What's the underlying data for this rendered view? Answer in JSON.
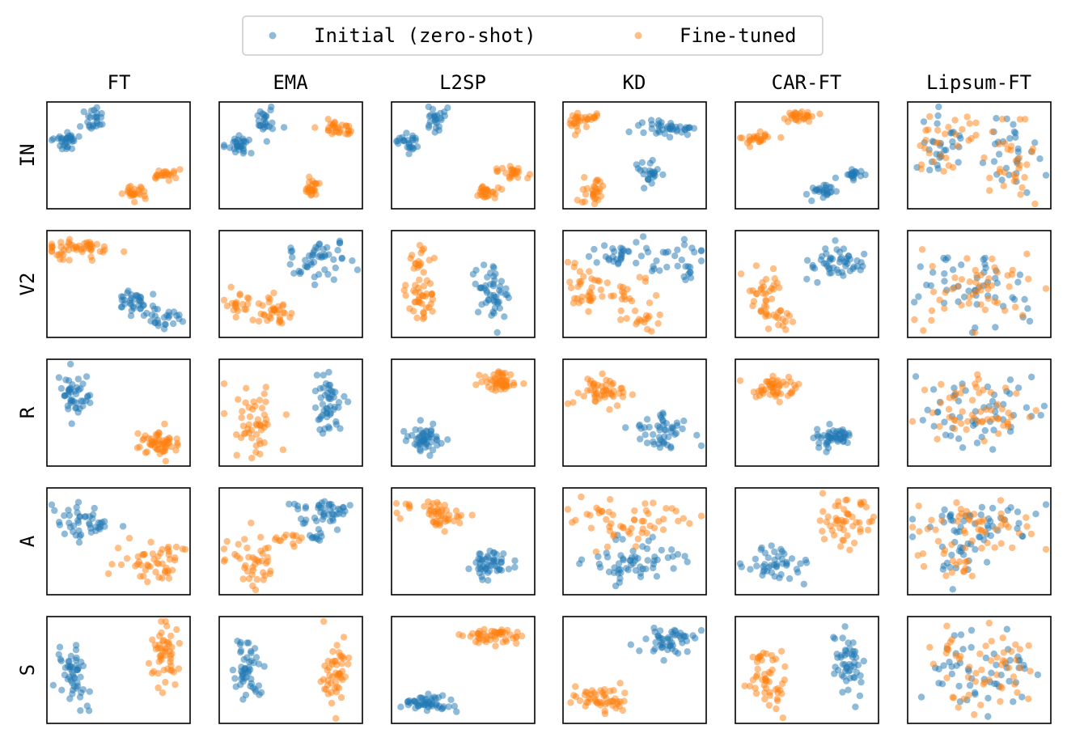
{
  "chart_data": {
    "type": "scatter",
    "legend": {
      "placement": "top-center",
      "entries": [
        {
          "label": "Initial (zero-shot)",
          "color": "#1f77b4"
        },
        {
          "label": "Fine-tuned",
          "color": "#ff7f0e"
        }
      ]
    },
    "columns": [
      "FT",
      "EMA",
      "L2SP",
      "KD",
      "CAR-FT",
      "Lipsum-FT"
    ],
    "rows": [
      "IN",
      "V2",
      "R",
      "A",
      "S"
    ],
    "point_alpha": 0.5,
    "panels": [
      {
        "row": "IN",
        "col": "FT",
        "initial": [
          {
            "cx": 0.1,
            "cy": 0.36,
            "sx": 0.05,
            "sy": 0.05,
            "n": 30
          },
          {
            "cx": 0.3,
            "cy": 0.15,
            "sx": 0.04,
            "sy": 0.08,
            "n": 25
          }
        ],
        "finetuned": [
          {
            "cx": 0.62,
            "cy": 0.88,
            "sx": 0.04,
            "sy": 0.04,
            "n": 25
          },
          {
            "cx": 0.85,
            "cy": 0.7,
            "sx": 0.06,
            "sy": 0.03,
            "n": 22
          }
        ]
      },
      {
        "row": "IN",
        "col": "EMA",
        "initial": [
          {
            "cx": 0.1,
            "cy": 0.4,
            "sx": 0.05,
            "sy": 0.05,
            "n": 30
          },
          {
            "cx": 0.32,
            "cy": 0.15,
            "sx": 0.04,
            "sy": 0.08,
            "n": 25
          }
        ],
        "finetuned": [
          {
            "cx": 0.85,
            "cy": 0.23,
            "sx": 0.06,
            "sy": 0.04,
            "n": 30
          },
          {
            "cx": 0.66,
            "cy": 0.85,
            "sx": 0.03,
            "sy": 0.06,
            "n": 25
          }
        ]
      },
      {
        "row": "IN",
        "col": "L2SP",
        "initial": [
          {
            "cx": 0.1,
            "cy": 0.35,
            "sx": 0.04,
            "sy": 0.05,
            "n": 25
          },
          {
            "cx": 0.3,
            "cy": 0.13,
            "sx": 0.04,
            "sy": 0.07,
            "n": 25
          }
        ],
        "finetuned": [
          {
            "cx": 0.68,
            "cy": 0.88,
            "sx": 0.05,
            "sy": 0.03,
            "n": 25
          },
          {
            "cx": 0.88,
            "cy": 0.68,
            "sx": 0.05,
            "sy": 0.05,
            "n": 25
          }
        ]
      },
      {
        "row": "IN",
        "col": "KD",
        "initial": [
          {
            "cx": 0.75,
            "cy": 0.22,
            "sx": 0.12,
            "sy": 0.05,
            "n": 40
          },
          {
            "cx": 0.6,
            "cy": 0.68,
            "sx": 0.06,
            "sy": 0.06,
            "n": 25
          }
        ],
        "finetuned": [
          {
            "cx": 0.13,
            "cy": 0.15,
            "sx": 0.07,
            "sy": 0.05,
            "n": 30
          },
          {
            "cx": 0.2,
            "cy": 0.85,
            "sx": 0.05,
            "sy": 0.07,
            "n": 30
          }
        ]
      },
      {
        "row": "IN",
        "col": "CAR-FT",
        "initial": [
          {
            "cx": 0.85,
            "cy": 0.7,
            "sx": 0.05,
            "sy": 0.03,
            "n": 20
          },
          {
            "cx": 0.62,
            "cy": 0.88,
            "sx": 0.06,
            "sy": 0.04,
            "n": 25
          }
        ],
        "finetuned": [
          {
            "cx": 0.45,
            "cy": 0.1,
            "sx": 0.05,
            "sy": 0.03,
            "n": 30
          },
          {
            "cx": 0.12,
            "cy": 0.32,
            "sx": 0.07,
            "sy": 0.03,
            "n": 25
          }
        ]
      },
      {
        "row": "IN",
        "col": "Lipsum-FT",
        "mixed": true,
        "initial": [
          {
            "cx": 0.22,
            "cy": 0.4,
            "sx": 0.12,
            "sy": 0.15,
            "n": 30
          },
          {
            "cx": 0.75,
            "cy": 0.5,
            "sx": 0.12,
            "sy": 0.2,
            "n": 30
          }
        ],
        "finetuned": [
          {
            "cx": 0.22,
            "cy": 0.4,
            "sx": 0.12,
            "sy": 0.15,
            "n": 30
          },
          {
            "cx": 0.75,
            "cy": 0.5,
            "sx": 0.12,
            "sy": 0.2,
            "n": 30
          }
        ]
      },
      {
        "row": "V2",
        "col": "FT",
        "initial": [
          {
            "cx": 0.62,
            "cy": 0.7,
            "sx": 0.06,
            "sy": 0.08,
            "n": 35
          },
          {
            "cx": 0.85,
            "cy": 0.85,
            "sx": 0.06,
            "sy": 0.05,
            "n": 25
          }
        ],
        "finetuned": [
          {
            "cx": 0.2,
            "cy": 0.15,
            "sx": 0.12,
            "sy": 0.06,
            "n": 50
          }
        ]
      },
      {
        "row": "V2",
        "col": "EMA",
        "initial": [
          {
            "cx": 0.7,
            "cy": 0.25,
            "sx": 0.14,
            "sy": 0.1,
            "n": 50
          }
        ],
        "finetuned": [
          {
            "cx": 0.1,
            "cy": 0.7,
            "sx": 0.05,
            "sy": 0.06,
            "n": 20
          },
          {
            "cx": 0.38,
            "cy": 0.78,
            "sx": 0.08,
            "sy": 0.08,
            "n": 35
          }
        ]
      },
      {
        "row": "V2",
        "col": "L2SP",
        "initial": [
          {
            "cx": 0.73,
            "cy": 0.6,
            "sx": 0.07,
            "sy": 0.15,
            "n": 50
          }
        ],
        "finetuned": [
          {
            "cx": 0.18,
            "cy": 0.25,
            "sx": 0.04,
            "sy": 0.13,
            "n": 20
          },
          {
            "cx": 0.18,
            "cy": 0.65,
            "sx": 0.06,
            "sy": 0.12,
            "n": 35
          }
        ]
      },
      {
        "row": "V2",
        "col": "KD",
        "initial": [
          {
            "cx": 0.48,
            "cy": 0.2,
            "sx": 0.22,
            "sy": 0.07,
            "n": 50
          },
          {
            "cx": 0.88,
            "cy": 0.35,
            "sx": 0.04,
            "sy": 0.08,
            "n": 10
          }
        ],
        "finetuned": [
          {
            "cx": 0.15,
            "cy": 0.55,
            "sx": 0.07,
            "sy": 0.12,
            "n": 35
          },
          {
            "cx": 0.48,
            "cy": 0.62,
            "sx": 0.1,
            "sy": 0.07,
            "n": 20
          },
          {
            "cx": 0.55,
            "cy": 0.88,
            "sx": 0.07,
            "sy": 0.05,
            "n": 15
          }
        ]
      },
      {
        "row": "V2",
        "col": "CAR-FT",
        "initial": [
          {
            "cx": 0.72,
            "cy": 0.28,
            "sx": 0.1,
            "sy": 0.1,
            "n": 50
          }
        ],
        "finetuned": [
          {
            "cx": 0.18,
            "cy": 0.6,
            "sx": 0.07,
            "sy": 0.12,
            "n": 30
          },
          {
            "cx": 0.28,
            "cy": 0.85,
            "sx": 0.06,
            "sy": 0.05,
            "n": 20
          }
        ]
      },
      {
        "row": "V2",
        "col": "Lipsum-FT",
        "mixed": true,
        "initial": [
          {
            "cx": 0.5,
            "cy": 0.55,
            "sx": 0.25,
            "sy": 0.2,
            "n": 50
          }
        ],
        "finetuned": [
          {
            "cx": 0.5,
            "cy": 0.55,
            "sx": 0.25,
            "sy": 0.2,
            "n": 50
          }
        ]
      },
      {
        "row": "R",
        "col": "FT",
        "initial": [
          {
            "cx": 0.17,
            "cy": 0.3,
            "sx": 0.06,
            "sy": 0.1,
            "n": 45
          }
        ],
        "finetuned": [
          {
            "cx": 0.8,
            "cy": 0.8,
            "sx": 0.08,
            "sy": 0.06,
            "n": 55
          }
        ]
      },
      {
        "row": "R",
        "col": "EMA",
        "initial": [
          {
            "cx": 0.78,
            "cy": 0.45,
            "sx": 0.06,
            "sy": 0.16,
            "n": 50
          }
        ],
        "finetuned": [
          {
            "cx": 0.25,
            "cy": 0.65,
            "sx": 0.08,
            "sy": 0.16,
            "n": 50
          }
        ]
      },
      {
        "row": "R",
        "col": "L2SP",
        "initial": [
          {
            "cx": 0.2,
            "cy": 0.75,
            "sx": 0.06,
            "sy": 0.07,
            "n": 50
          }
        ],
        "finetuned": [
          {
            "cx": 0.78,
            "cy": 0.18,
            "sx": 0.07,
            "sy": 0.05,
            "n": 50
          }
        ]
      },
      {
        "row": "R",
        "col": "KD",
        "initial": [
          {
            "cx": 0.7,
            "cy": 0.7,
            "sx": 0.1,
            "sy": 0.1,
            "n": 50
          }
        ],
        "finetuned": [
          {
            "cx": 0.25,
            "cy": 0.28,
            "sx": 0.1,
            "sy": 0.08,
            "n": 50
          }
        ]
      },
      {
        "row": "R",
        "col": "CAR-FT",
        "initial": [
          {
            "cx": 0.7,
            "cy": 0.75,
            "sx": 0.09,
            "sy": 0.06,
            "n": 50
          }
        ],
        "finetuned": [
          {
            "cx": 0.25,
            "cy": 0.25,
            "sx": 0.08,
            "sy": 0.08,
            "n": 50
          }
        ]
      },
      {
        "row": "R",
        "col": "Lipsum-FT",
        "mixed": true,
        "initial": [
          {
            "cx": 0.5,
            "cy": 0.45,
            "sx": 0.24,
            "sy": 0.2,
            "n": 55
          }
        ],
        "finetuned": [
          {
            "cx": 0.5,
            "cy": 0.45,
            "sx": 0.24,
            "sy": 0.2,
            "n": 55
          }
        ]
      },
      {
        "row": "A",
        "col": "FT",
        "initial": [
          {
            "cx": 0.22,
            "cy": 0.3,
            "sx": 0.12,
            "sy": 0.1,
            "n": 45
          }
        ],
        "finetuned": [
          {
            "cx": 0.75,
            "cy": 0.7,
            "sx": 0.12,
            "sy": 0.1,
            "n": 50
          }
        ]
      },
      {
        "row": "A",
        "col": "EMA",
        "initial": [
          {
            "cx": 0.7,
            "cy": 0.2,
            "sx": 0.15,
            "sy": 0.07,
            "n": 45
          },
          {
            "cx": 0.7,
            "cy": 0.45,
            "sx": 0.05,
            "sy": 0.05,
            "n": 10
          }
        ],
        "finetuned": [
          {
            "cx": 0.25,
            "cy": 0.7,
            "sx": 0.1,
            "sy": 0.12,
            "n": 45
          },
          {
            "cx": 0.48,
            "cy": 0.45,
            "sx": 0.05,
            "sy": 0.05,
            "n": 10
          }
        ]
      },
      {
        "row": "A",
        "col": "L2SP",
        "initial": [
          {
            "cx": 0.7,
            "cy": 0.75,
            "sx": 0.08,
            "sy": 0.08,
            "n": 50
          }
        ],
        "finetuned": [
          {
            "cx": 0.3,
            "cy": 0.2,
            "sx": 0.12,
            "sy": 0.07,
            "n": 50
          }
        ]
      },
      {
        "row": "A",
        "col": "KD",
        "initial": [
          {
            "cx": 0.55,
            "cy": 0.7,
            "sx": 0.2,
            "sy": 0.12,
            "n": 60
          }
        ],
        "finetuned": [
          {
            "cx": 0.5,
            "cy": 0.3,
            "sx": 0.22,
            "sy": 0.12,
            "n": 55
          }
        ]
      },
      {
        "row": "A",
        "col": "CAR-FT",
        "initial": [
          {
            "cx": 0.25,
            "cy": 0.72,
            "sx": 0.12,
            "sy": 0.08,
            "n": 45
          }
        ],
        "finetuned": [
          {
            "cx": 0.75,
            "cy": 0.3,
            "sx": 0.1,
            "sy": 0.12,
            "n": 50
          }
        ]
      },
      {
        "row": "A",
        "col": "Lipsum-FT",
        "mixed": true,
        "initial": [
          {
            "cx": 0.5,
            "cy": 0.35,
            "sx": 0.24,
            "sy": 0.15,
            "n": 50
          },
          {
            "cx": 0.35,
            "cy": 0.75,
            "sx": 0.08,
            "sy": 0.1,
            "n": 15
          }
        ],
        "finetuned": [
          {
            "cx": 0.5,
            "cy": 0.35,
            "sx": 0.24,
            "sy": 0.15,
            "n": 50
          },
          {
            "cx": 0.35,
            "cy": 0.75,
            "sx": 0.08,
            "sy": 0.1,
            "n": 15
          }
        ]
      },
      {
        "row": "S",
        "col": "FT",
        "initial": [
          {
            "cx": 0.17,
            "cy": 0.55,
            "sx": 0.05,
            "sy": 0.18,
            "n": 50
          }
        ],
        "finetuned": [
          {
            "cx": 0.83,
            "cy": 0.35,
            "sx": 0.05,
            "sy": 0.18,
            "n": 50
          }
        ]
      },
      {
        "row": "S",
        "col": "EMA",
        "initial": [
          {
            "cx": 0.17,
            "cy": 0.55,
            "sx": 0.05,
            "sy": 0.18,
            "n": 50
          }
        ],
        "finetuned": [
          {
            "cx": 0.83,
            "cy": 0.5,
            "sx": 0.05,
            "sy": 0.2,
            "n": 50
          }
        ]
      },
      {
        "row": "S",
        "col": "L2SP",
        "initial": [
          {
            "cx": 0.22,
            "cy": 0.85,
            "sx": 0.1,
            "sy": 0.04,
            "n": 50
          }
        ],
        "finetuned": [
          {
            "cx": 0.75,
            "cy": 0.15,
            "sx": 0.12,
            "sy": 0.04,
            "n": 50
          }
        ]
      },
      {
        "row": "S",
        "col": "KD",
        "initial": [
          {
            "cx": 0.75,
            "cy": 0.2,
            "sx": 0.1,
            "sy": 0.08,
            "n": 50
          }
        ],
        "finetuned": [
          {
            "cx": 0.25,
            "cy": 0.8,
            "sx": 0.1,
            "sy": 0.07,
            "n": 50
          }
        ]
      },
      {
        "row": "S",
        "col": "CAR-FT",
        "initial": [
          {
            "cx": 0.8,
            "cy": 0.4,
            "sx": 0.05,
            "sy": 0.16,
            "n": 50
          }
        ],
        "finetuned": [
          {
            "cx": 0.2,
            "cy": 0.6,
            "sx": 0.06,
            "sy": 0.18,
            "n": 50
          }
        ]
      },
      {
        "row": "S",
        "col": "Lipsum-FT",
        "mixed": true,
        "initial": [
          {
            "cx": 0.5,
            "cy": 0.5,
            "sx": 0.22,
            "sy": 0.2,
            "n": 55
          }
        ],
        "finetuned": [
          {
            "cx": 0.5,
            "cy": 0.5,
            "sx": 0.22,
            "sy": 0.2,
            "n": 55
          }
        ]
      }
    ]
  }
}
